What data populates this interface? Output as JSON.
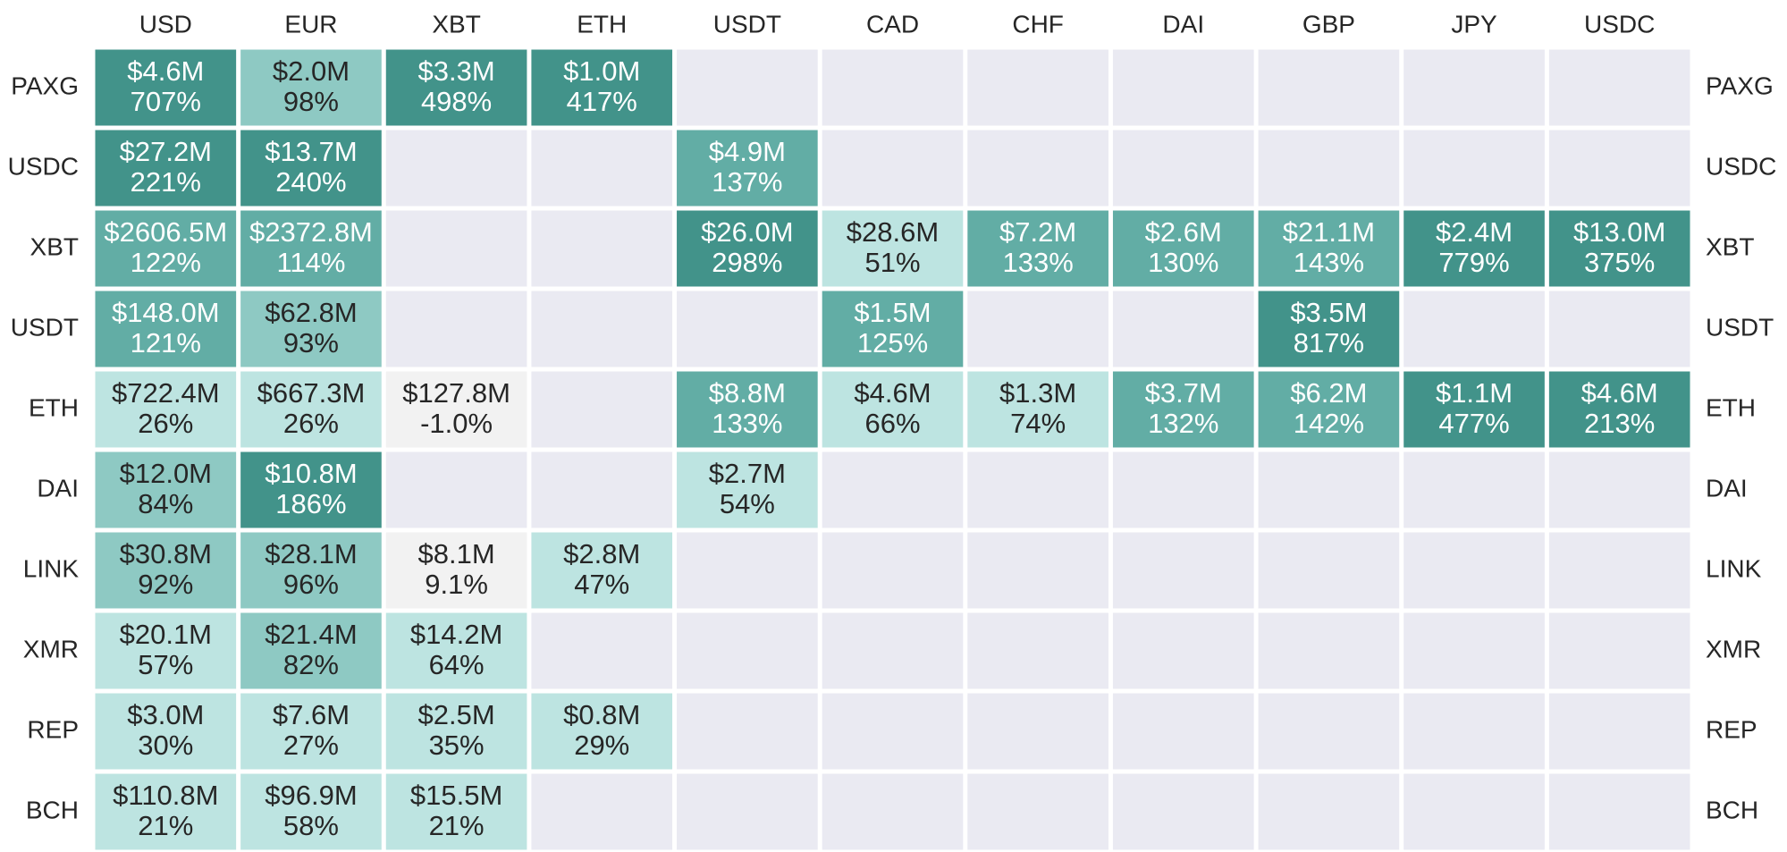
{
  "chart_data": {
    "type": "heatmap",
    "title": "",
    "columns": [
      "USD",
      "EUR",
      "XBT",
      "ETH",
      "USDT",
      "CAD",
      "CHF",
      "DAI",
      "GBP",
      "JPY",
      "USDC"
    ],
    "rows": [
      "PAXG",
      "USDC",
      "XBT",
      "USDT",
      "ETH",
      "DAI",
      "LINK",
      "XMR",
      "REP",
      "BCH"
    ],
    "cells": [
      [
        {
          "v": "$4.6M",
          "p": "707%"
        },
        {
          "v": "$2.0M",
          "p": "98%"
        },
        {
          "v": "$3.3M",
          "p": "498%"
        },
        {
          "v": "$1.0M",
          "p": "417%"
        },
        null,
        null,
        null,
        null,
        null,
        null,
        null
      ],
      [
        {
          "v": "$27.2M",
          "p": "221%"
        },
        {
          "v": "$13.7M",
          "p": "240%"
        },
        null,
        null,
        {
          "v": "$4.9M",
          "p": "137%"
        },
        null,
        null,
        null,
        null,
        null,
        null
      ],
      [
        {
          "v": "$2606.5M",
          "p": "122%"
        },
        {
          "v": "$2372.8M",
          "p": "114%"
        },
        null,
        null,
        {
          "v": "$26.0M",
          "p": "298%"
        },
        {
          "v": "$28.6M",
          "p": "51%"
        },
        {
          "v": "$7.2M",
          "p": "133%"
        },
        {
          "v": "$2.6M",
          "p": "130%"
        },
        {
          "v": "$21.1M",
          "p": "143%"
        },
        {
          "v": "$2.4M",
          "p": "779%"
        },
        {
          "v": "$13.0M",
          "p": "375%"
        }
      ],
      [
        {
          "v": "$148.0M",
          "p": "121%"
        },
        {
          "v": "$62.8M",
          "p": "93%"
        },
        null,
        null,
        null,
        {
          "v": "$1.5M",
          "p": "125%"
        },
        null,
        null,
        {
          "v": "$3.5M",
          "p": "817%"
        },
        null,
        null
      ],
      [
        {
          "v": "$722.4M",
          "p": "26%"
        },
        {
          "v": "$667.3M",
          "p": "26%"
        },
        {
          "v": "$127.8M",
          "p": "-1.0%"
        },
        null,
        {
          "v": "$8.8M",
          "p": "133%"
        },
        {
          "v": "$4.6M",
          "p": "66%"
        },
        {
          "v": "$1.3M",
          "p": "74%"
        },
        {
          "v": "$3.7M",
          "p": "132%"
        },
        {
          "v": "$6.2M",
          "p": "142%"
        },
        {
          "v": "$1.1M",
          "p": "477%"
        },
        {
          "v": "$4.6M",
          "p": "213%"
        }
      ],
      [
        {
          "v": "$12.0M",
          "p": "84%"
        },
        {
          "v": "$10.8M",
          "p": "186%"
        },
        null,
        null,
        {
          "v": "$2.7M",
          "p": "54%"
        },
        null,
        null,
        null,
        null,
        null,
        null
      ],
      [
        {
          "v": "$30.8M",
          "p": "92%"
        },
        {
          "v": "$28.1M",
          "p": "96%"
        },
        {
          "v": "$8.1M",
          "p": "9.1%"
        },
        {
          "v": "$2.8M",
          "p": "47%"
        },
        null,
        null,
        null,
        null,
        null,
        null,
        null
      ],
      [
        {
          "v": "$20.1M",
          "p": "57%"
        },
        {
          "v": "$21.4M",
          "p": "82%"
        },
        {
          "v": "$14.2M",
          "p": "64%"
        },
        null,
        null,
        null,
        null,
        null,
        null,
        null,
        null
      ],
      [
        {
          "v": "$3.0M",
          "p": "30%"
        },
        {
          "v": "$7.6M",
          "p": "27%"
        },
        {
          "v": "$2.5M",
          "p": "35%"
        },
        {
          "v": "$0.8M",
          "p": "29%"
        },
        null,
        null,
        null,
        null,
        null,
        null,
        null
      ],
      [
        {
          "v": "$110.8M",
          "p": "21%"
        },
        {
          "v": "$96.9M",
          "p": "58%"
        },
        {
          "v": "$15.5M",
          "p": "21%"
        },
        null,
        null,
        null,
        null,
        null,
        null,
        null,
        null
      ]
    ],
    "colors": {
      "empty": "#eaeaf2",
      "grid_line": "#ffffff",
      "scale": [
        "#f2f2f2",
        "#bde4e1",
        "#8ec9c3",
        "#62ada5",
        "#42938a"
      ],
      "text_dark": "#262626",
      "text_light": "#ffffff"
    }
  }
}
